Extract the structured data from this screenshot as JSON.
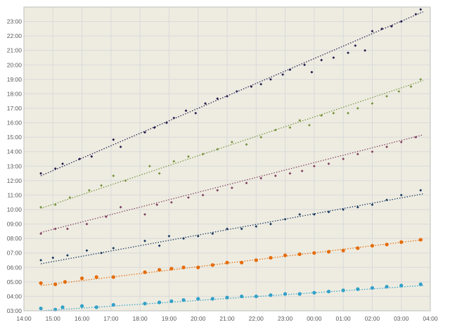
{
  "chart_data": {
    "type": "scatter",
    "title": "",
    "xlabel": "",
    "ylabel": "",
    "xlim": [
      "14:00",
      "04:00"
    ],
    "ylim": [
      "03:00",
      "24:00"
    ],
    "x_ticks": [
      "14:00",
      "15:00",
      "16:00",
      "17:00",
      "18:00",
      "19:00",
      "20:00",
      "21:00",
      "22:00",
      "23:00",
      "00:00",
      "01:00",
      "02:00",
      "03:00",
      "04:00"
    ],
    "y_ticks": [
      "03:00",
      "04:00",
      "05:00",
      "06:00",
      "07:00",
      "08:00",
      "09:00",
      "10:00",
      "11:00",
      "12:00",
      "13:00",
      "14:00",
      "15:00",
      "16:00",
      "17:00",
      "18:00",
      "19:00",
      "20:00",
      "21:00",
      "22:00",
      "23:00"
    ],
    "grid": true,
    "plot_background": "#EEECE1",
    "grid_color": "#D9D9D9",
    "series": [
      {
        "color": "#1F1A4A",
        "marker": "diamond",
        "trendline": [
          [
            "14:35",
            "12:20"
          ],
          [
            "03:45",
            "23:40"
          ]
        ],
        "points": [
          [
            "14:35",
            "12:30"
          ],
          [
            "15:05",
            "12:50"
          ],
          [
            "15:20",
            "13:10"
          ],
          [
            "15:55",
            "13:30"
          ],
          [
            "16:20",
            "13:40"
          ],
          [
            "17:05",
            "14:50"
          ],
          [
            "17:20",
            "14:20"
          ],
          [
            "18:10",
            "15:20"
          ],
          [
            "18:30",
            "15:40"
          ],
          [
            "18:55",
            "16:00"
          ],
          [
            "19:10",
            "16:20"
          ],
          [
            "19:35",
            "16:50"
          ],
          [
            "19:55",
            "16:40"
          ],
          [
            "20:15",
            "17:20"
          ],
          [
            "20:40",
            "17:40"
          ],
          [
            "21:00",
            "17:50"
          ],
          [
            "21:20",
            "18:10"
          ],
          [
            "21:50",
            "18:30"
          ],
          [
            "22:10",
            "18:40"
          ],
          [
            "22:30",
            "19:00"
          ],
          [
            "22:55",
            "19:20"
          ],
          [
            "23:10",
            "19:40"
          ],
          [
            "23:40",
            "20:00"
          ],
          [
            "23:55",
            "19:30"
          ],
          [
            "00:15",
            "20:20"
          ],
          [
            "00:40",
            "20:30"
          ],
          [
            "01:10",
            "20:50"
          ],
          [
            "01:25",
            "21:20"
          ],
          [
            "01:45",
            "21:00"
          ],
          [
            "02:00",
            "22:20"
          ],
          [
            "02:20",
            "22:30"
          ],
          [
            "02:40",
            "22:40"
          ],
          [
            "03:00",
            "23:00"
          ],
          [
            "03:30",
            "23:30"
          ],
          [
            "03:40",
            "23:50"
          ]
        ]
      },
      {
        "color": "#76923C",
        "marker": "diamond",
        "trendline": [
          [
            "14:35",
            "10:05"
          ],
          [
            "03:45",
            "18:55"
          ]
        ],
        "points": [
          [
            "14:35",
            "10:10"
          ],
          [
            "15:05",
            "10:20"
          ],
          [
            "15:35",
            "10:50"
          ],
          [
            "16:15",
            "11:20"
          ],
          [
            "16:40",
            "11:40"
          ],
          [
            "17:05",
            "12:20"
          ],
          [
            "17:30",
            "12:00"
          ],
          [
            "18:20",
            "13:00"
          ],
          [
            "18:40",
            "12:30"
          ],
          [
            "19:10",
            "13:20"
          ],
          [
            "19:40",
            "13:40"
          ],
          [
            "20:10",
            "13:50"
          ],
          [
            "20:40",
            "14:10"
          ],
          [
            "21:10",
            "14:40"
          ],
          [
            "21:40",
            "14:30"
          ],
          [
            "22:10",
            "15:00"
          ],
          [
            "22:40",
            "15:30"
          ],
          [
            "23:10",
            "15:40"
          ],
          [
            "23:30",
            "16:10"
          ],
          [
            "23:50",
            "15:50"
          ],
          [
            "00:15",
            "16:30"
          ],
          [
            "00:40",
            "16:40"
          ],
          [
            "01:10",
            "16:40"
          ],
          [
            "01:30",
            "17:00"
          ],
          [
            "02:00",
            "17:20"
          ],
          [
            "02:30",
            "17:50"
          ],
          [
            "02:55",
            "18:10"
          ],
          [
            "03:20",
            "18:30"
          ],
          [
            "03:40",
            "19:00"
          ]
        ]
      },
      {
        "color": "#7F3F5F",
        "marker": "diamond",
        "trendline": [
          [
            "14:35",
            "08:25"
          ],
          [
            "03:45",
            "15:10"
          ]
        ],
        "points": [
          [
            "14:35",
            "08:20"
          ],
          [
            "15:05",
            "08:40"
          ],
          [
            "15:30",
            "08:40"
          ],
          [
            "16:10",
            "09:00"
          ],
          [
            "16:50",
            "09:30"
          ],
          [
            "17:20",
            "10:10"
          ],
          [
            "18:10",
            "09:40"
          ],
          [
            "18:35",
            "10:20"
          ],
          [
            "19:05",
            "10:30"
          ],
          [
            "19:40",
            "10:50"
          ],
          [
            "20:10",
            "11:00"
          ],
          [
            "20:40",
            "11:20"
          ],
          [
            "21:10",
            "11:30"
          ],
          [
            "21:40",
            "11:50"
          ],
          [
            "22:10",
            "12:10"
          ],
          [
            "22:40",
            "12:20"
          ],
          [
            "23:10",
            "12:30"
          ],
          [
            "23:35",
            "12:40"
          ],
          [
            "00:00",
            "13:00"
          ],
          [
            "00:30",
            "13:10"
          ],
          [
            "01:00",
            "13:30"
          ],
          [
            "01:30",
            "13:50"
          ],
          [
            "02:00",
            "14:00"
          ],
          [
            "02:30",
            "14:20"
          ],
          [
            "03:00",
            "14:40"
          ],
          [
            "03:30",
            "15:00"
          ]
        ]
      },
      {
        "color": "#17375E",
        "marker": "diamond",
        "trendline": [
          [
            "14:35",
            "06:15"
          ],
          [
            "03:45",
            "11:05"
          ]
        ],
        "points": [
          [
            "14:35",
            "06:30"
          ],
          [
            "15:00",
            "06:40"
          ],
          [
            "15:30",
            "06:50"
          ],
          [
            "16:10",
            "07:10"
          ],
          [
            "16:40",
            "07:00"
          ],
          [
            "17:05",
            "07:20"
          ],
          [
            "18:10",
            "07:50"
          ],
          [
            "18:40",
            "07:30"
          ],
          [
            "19:00",
            "08:10"
          ],
          [
            "19:30",
            "08:00"
          ],
          [
            "20:00",
            "08:10"
          ],
          [
            "20:30",
            "08:20"
          ],
          [
            "21:00",
            "08:40"
          ],
          [
            "21:30",
            "08:40"
          ],
          [
            "22:00",
            "08:50"
          ],
          [
            "22:30",
            "09:00"
          ],
          [
            "23:00",
            "09:20"
          ],
          [
            "23:30",
            "09:40"
          ],
          [
            "00:00",
            "09:40"
          ],
          [
            "00:30",
            "09:50"
          ],
          [
            "01:00",
            "10:00"
          ],
          [
            "01:30",
            "10:10"
          ],
          [
            "02:00",
            "10:20"
          ],
          [
            "02:30",
            "10:40"
          ],
          [
            "03:00",
            "11:00"
          ],
          [
            "03:40",
            "11:20"
          ]
        ]
      },
      {
        "color": "#E46C0A",
        "marker": "circle",
        "trendline": [
          [
            "14:35",
            "04:45"
          ],
          [
            "03:45",
            "07:55"
          ]
        ],
        "points": [
          [
            "14:35",
            "04:55"
          ],
          [
            "15:05",
            "04:50"
          ],
          [
            "15:25",
            "05:00"
          ],
          [
            "16:00",
            "05:15"
          ],
          [
            "16:30",
            "05:20"
          ],
          [
            "17:05",
            "05:20"
          ],
          [
            "18:10",
            "05:40"
          ],
          [
            "18:40",
            "05:50"
          ],
          [
            "19:05",
            "05:55"
          ],
          [
            "19:30",
            "06:00"
          ],
          [
            "20:00",
            "06:00"
          ],
          [
            "20:30",
            "06:10"
          ],
          [
            "21:00",
            "06:20"
          ],
          [
            "21:30",
            "06:20"
          ],
          [
            "22:00",
            "06:30"
          ],
          [
            "22:30",
            "06:40"
          ],
          [
            "23:00",
            "06:50"
          ],
          [
            "23:30",
            "06:55"
          ],
          [
            "00:00",
            "07:00"
          ],
          [
            "00:30",
            "07:05"
          ],
          [
            "01:00",
            "07:10"
          ],
          [
            "01:30",
            "07:20"
          ],
          [
            "02:00",
            "07:30"
          ],
          [
            "02:30",
            "07:35"
          ],
          [
            "03:00",
            "07:45"
          ],
          [
            "03:40",
            "07:55"
          ]
        ]
      },
      {
        "color": "#31A0C8",
        "marker": "circle",
        "trendline": [
          [
            "14:35",
            "03:00"
          ],
          [
            "03:45",
            "04:45"
          ]
        ],
        "points": [
          [
            "14:35",
            "03:10"
          ],
          [
            "15:05",
            "03:05"
          ],
          [
            "15:20",
            "03:15"
          ],
          [
            "16:00",
            "03:20"
          ],
          [
            "16:30",
            "03:15"
          ],
          [
            "17:05",
            "03:25"
          ],
          [
            "18:10",
            "03:30"
          ],
          [
            "18:40",
            "03:35"
          ],
          [
            "19:05",
            "03:40"
          ],
          [
            "19:30",
            "03:45"
          ],
          [
            "20:00",
            "03:50"
          ],
          [
            "20:30",
            "03:50"
          ],
          [
            "21:00",
            "03:55"
          ],
          [
            "21:30",
            "04:00"
          ],
          [
            "22:00",
            "04:00"
          ],
          [
            "22:30",
            "04:05"
          ],
          [
            "23:00",
            "04:10"
          ],
          [
            "23:30",
            "04:10"
          ],
          [
            "00:00",
            "04:15"
          ],
          [
            "00:30",
            "04:20"
          ],
          [
            "01:00",
            "04:25"
          ],
          [
            "01:30",
            "04:30"
          ],
          [
            "02:00",
            "04:35"
          ],
          [
            "02:30",
            "04:40"
          ],
          [
            "03:00",
            "04:45"
          ],
          [
            "03:40",
            "04:50"
          ]
        ]
      }
    ]
  }
}
